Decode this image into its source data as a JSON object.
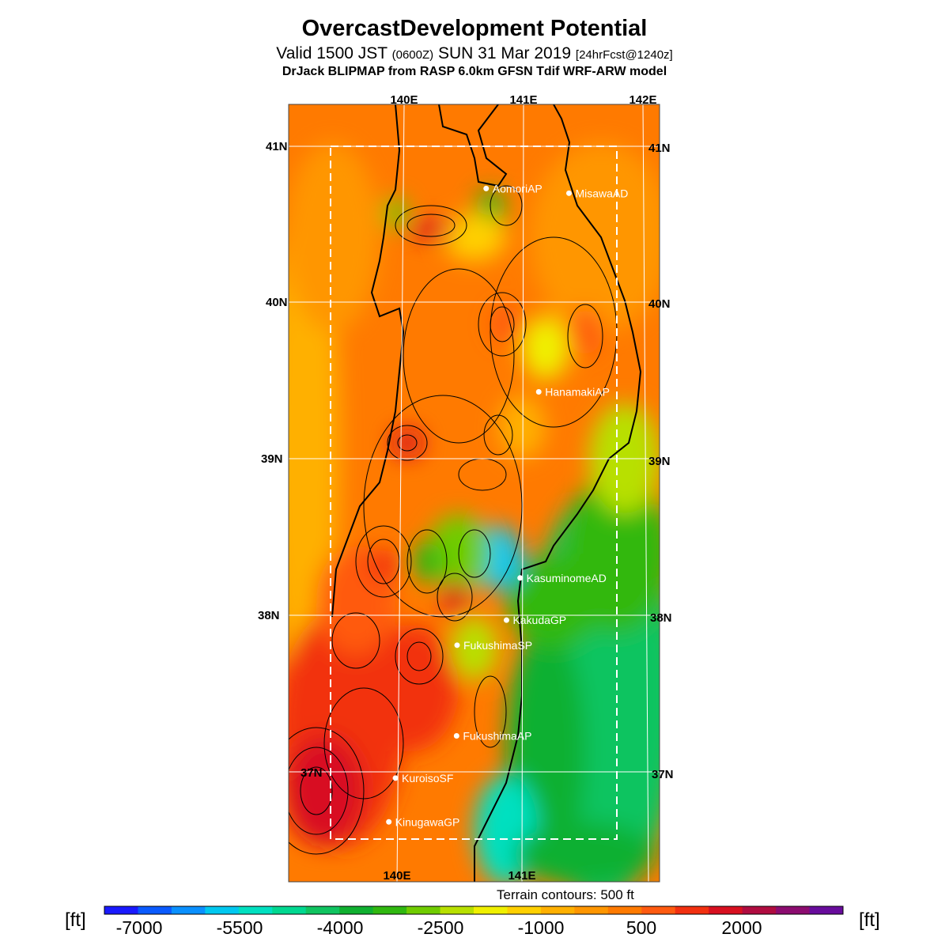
{
  "title": "OvercastDevelopment Potential",
  "subtitle": {
    "valid": "Valid 1500 JST",
    "utc": "(0600Z)",
    "date": "SUN 31 Mar 2019",
    "forecast": "[24hrFcst@1240z]"
  },
  "model_line": "DrJack BLIPMAP from RASP 6.0km GFSN Tdif WRF-ARW model",
  "lon_labels": [
    "140E",
    "141E",
    "142E"
  ],
  "lat_labels": [
    "41N",
    "40N",
    "39N",
    "38N",
    "37N"
  ],
  "stations": [
    {
      "name": "AomoriAP",
      "lon": 140.69,
      "lat": 40.73
    },
    {
      "name": "MisawaAD",
      "lon": 141.38,
      "lat": 40.7
    },
    {
      "name": "HanamakiAP",
      "lon": 141.13,
      "lat": 39.43
    },
    {
      "name": "KasuminomeAD",
      "lon": 140.98,
      "lat": 38.24
    },
    {
      "name": "KakudaGP",
      "lon": 140.87,
      "lat": 37.97
    },
    {
      "name": "FukushimaSP",
      "lon": 140.47,
      "lat": 37.81
    },
    {
      "name": "FukushimaAP",
      "lon": 140.47,
      "lat": 37.23
    },
    {
      "name": "KuroisoSF",
      "lon": 139.98,
      "lat": 36.96
    },
    {
      "name": "KinugawaGP",
      "lon": 139.93,
      "lat": 36.68
    }
  ],
  "terrain_note": "Terrain contours: 500 ft",
  "colorbar": {
    "unit": "[ft]",
    "labels": [
      "-7000",
      "-5500",
      "-4000",
      "-2500",
      "-1000",
      "500",
      "2000"
    ],
    "colors": [
      "#1a1aff",
      "#0a5aff",
      "#0a90ff",
      "#00c8f0",
      "#00e0c0",
      "#00d890",
      "#10c460",
      "#10b030",
      "#30b810",
      "#70cc00",
      "#b8e000",
      "#f0f000",
      "#ffd000",
      "#ffb000",
      "#ff9600",
      "#ff7a00",
      "#ff5a10",
      "#f23010",
      "#d81020",
      "#b00c40",
      "#8c0c70",
      "#680c9c"
    ]
  }
}
